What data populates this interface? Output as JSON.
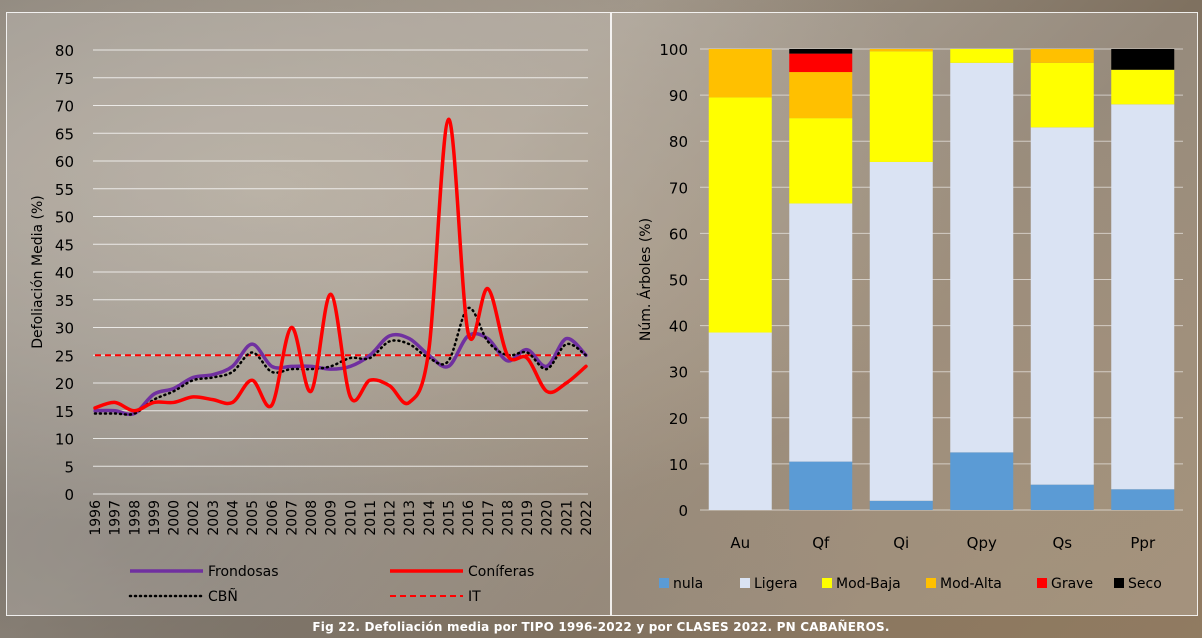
{
  "caption": "Fig 22. Defoliación media por TIPO 1996-2022 y por CLASES 2022. PN CABAÑEROS.",
  "chart_data": [
    {
      "type": "line",
      "ylabel": "Defoliación Media (%)",
      "xlabel": "",
      "ylim": [
        0,
        80
      ],
      "yticks": [
        0,
        5,
        10,
        15,
        20,
        25,
        30,
        35,
        40,
        45,
        50,
        55,
        60,
        65,
        70,
        75,
        80
      ],
      "grid": true,
      "legend_position": "bottom",
      "x": [
        "1996",
        "1997",
        "1998",
        "1999",
        "2000",
        "2002",
        "2003",
        "2004",
        "2005",
        "2006",
        "2007",
        "2008",
        "2009",
        "2010",
        "2011",
        "2012",
        "2013",
        "2014",
        "2015",
        "2016",
        "2017",
        "2018",
        "2019",
        "2020",
        "2021",
        "2022"
      ],
      "series": [
        {
          "name": "Frondosas",
          "color": "#7030a0",
          "style": "solid",
          "values": [
            15,
            15,
            14.5,
            18,
            19,
            21,
            21.5,
            23,
            27,
            23,
            23,
            23,
            22.5,
            23,
            25,
            28.5,
            28,
            25,
            23,
            28.5,
            28,
            24,
            26,
            23,
            28,
            25
          ]
        },
        {
          "name": "Coníferas",
          "color": "#ff0000",
          "style": "solid",
          "values": [
            15.5,
            16.5,
            15,
            16.5,
            16.5,
            17.5,
            17,
            16.5,
            20.5,
            16,
            30,
            18.5,
            36,
            17.5,
            20.5,
            19.5,
            16.5,
            26,
            67.5,
            29,
            37,
            25,
            24.5,
            18.5,
            20,
            23
          ]
        },
        {
          "name": "CBÑ",
          "color": "#000000",
          "style": "dotted",
          "values": [
            14.5,
            14.5,
            14.5,
            17,
            18.5,
            20.5,
            21,
            22,
            25.5,
            22,
            22.5,
            22.5,
            23,
            24.5,
            24.5,
            27.5,
            27,
            24.5,
            24,
            33.5,
            27.5,
            25,
            25.5,
            22.5,
            27,
            25
          ]
        },
        {
          "name": "IT",
          "color": "#ff0000",
          "style": "dashed",
          "values": [
            25,
            25,
            25,
            25,
            25,
            25,
            25,
            25,
            25,
            25,
            25,
            25,
            25,
            25,
            25,
            25,
            25,
            25,
            25,
            25,
            25,
            25,
            25,
            25,
            25,
            25
          ]
        }
      ]
    },
    {
      "type": "bar",
      "stacked": true,
      "ylabel": "Núm. Árboles (%)",
      "xlabel": "",
      "ylim": [
        0,
        100
      ],
      "yticks": [
        0,
        10,
        20,
        30,
        40,
        50,
        60,
        70,
        80,
        90,
        100
      ],
      "legend_position": "bottom",
      "categories": [
        "Au",
        "Qf",
        "Qi",
        "Qpy",
        "Qs",
        "Ppr"
      ],
      "series": [
        {
          "name": "nula",
          "color": "#5b9bd5",
          "values": [
            0,
            10.5,
            2,
            12.5,
            5.5,
            4.5
          ]
        },
        {
          "name": "Ligera",
          "color": "#dae3f3",
          "values": [
            38.5,
            56,
            73.5,
            84.5,
            77.5,
            83.5
          ]
        },
        {
          "name": "Mod-Baja",
          "color": "#ffff00",
          "values": [
            51,
            18.5,
            24,
            3,
            14,
            7.5
          ]
        },
        {
          "name": "Mod-Alta",
          "color": "#ffc000",
          "values": [
            10.5,
            10,
            0.5,
            0,
            3,
            0
          ]
        },
        {
          "name": "Grave",
          "color": "#ff0000",
          "values": [
            0,
            4,
            0,
            0,
            0,
            0
          ]
        },
        {
          "name": "Seco",
          "color": "#000000",
          "values": [
            0,
            1,
            0,
            0,
            0,
            4.5
          ]
        }
      ]
    }
  ]
}
